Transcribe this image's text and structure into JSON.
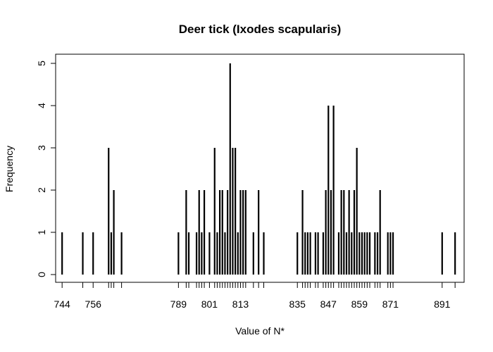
{
  "chart_data": {
    "type": "bar",
    "title": "Deer tick (Ixodes scapularis)",
    "xlabel": "Value of N*",
    "ylabel": "Frequency",
    "xlim": [
      741.5,
      899.5
    ],
    "ylim": [
      0,
      5
    ],
    "x_tick_labels": [
      744,
      756,
      789,
      801,
      813,
      835,
      847,
      859,
      871,
      891
    ],
    "x_minor_ticks": [
      744,
      752,
      756,
      762,
      763,
      764,
      767,
      789,
      792,
      793,
      796,
      797,
      798,
      799,
      801,
      803,
      804,
      805,
      806,
      807,
      808,
      809,
      810,
      811,
      812,
      813,
      814,
      815,
      818,
      820,
      822,
      835,
      837,
      838,
      839,
      840,
      842,
      843,
      845,
      846,
      847,
      848,
      849,
      851,
      852,
      853,
      854,
      855,
      856,
      857,
      858,
      859,
      860,
      861,
      862,
      863,
      865,
      866,
      867,
      870,
      871,
      872,
      891,
      896
    ],
    "y_ticks": [
      0,
      1,
      2,
      3,
      4,
      5
    ],
    "x": [
      744,
      752,
      756,
      762,
      763,
      764,
      767,
      789,
      792,
      793,
      796,
      797,
      798,
      799,
      801,
      803,
      804,
      805,
      806,
      807,
      808,
      809,
      810,
      811,
      812,
      813,
      814,
      815,
      818,
      820,
      822,
      835,
      837,
      838,
      839,
      840,
      842,
      843,
      845,
      846,
      847,
      848,
      849,
      851,
      852,
      853,
      854,
      855,
      856,
      857,
      858,
      859,
      860,
      861,
      862,
      863,
      865,
      866,
      867,
      870,
      871,
      872,
      891,
      896
    ],
    "values": [
      1,
      1,
      1,
      3,
      1,
      2,
      1,
      1,
      2,
      1,
      1,
      2,
      1,
      2,
      1,
      3,
      1,
      2,
      2,
      1,
      2,
      5,
      3,
      3,
      1,
      2,
      2,
      2,
      1,
      2,
      1,
      1,
      2,
      1,
      1,
      1,
      1,
      1,
      1,
      2,
      4,
      2,
      4,
      1,
      2,
      2,
      1,
      2,
      1,
      2,
      3,
      1,
      1,
      1,
      1,
      1,
      1,
      1,
      2,
      1,
      1,
      1,
      1,
      1
    ]
  }
}
